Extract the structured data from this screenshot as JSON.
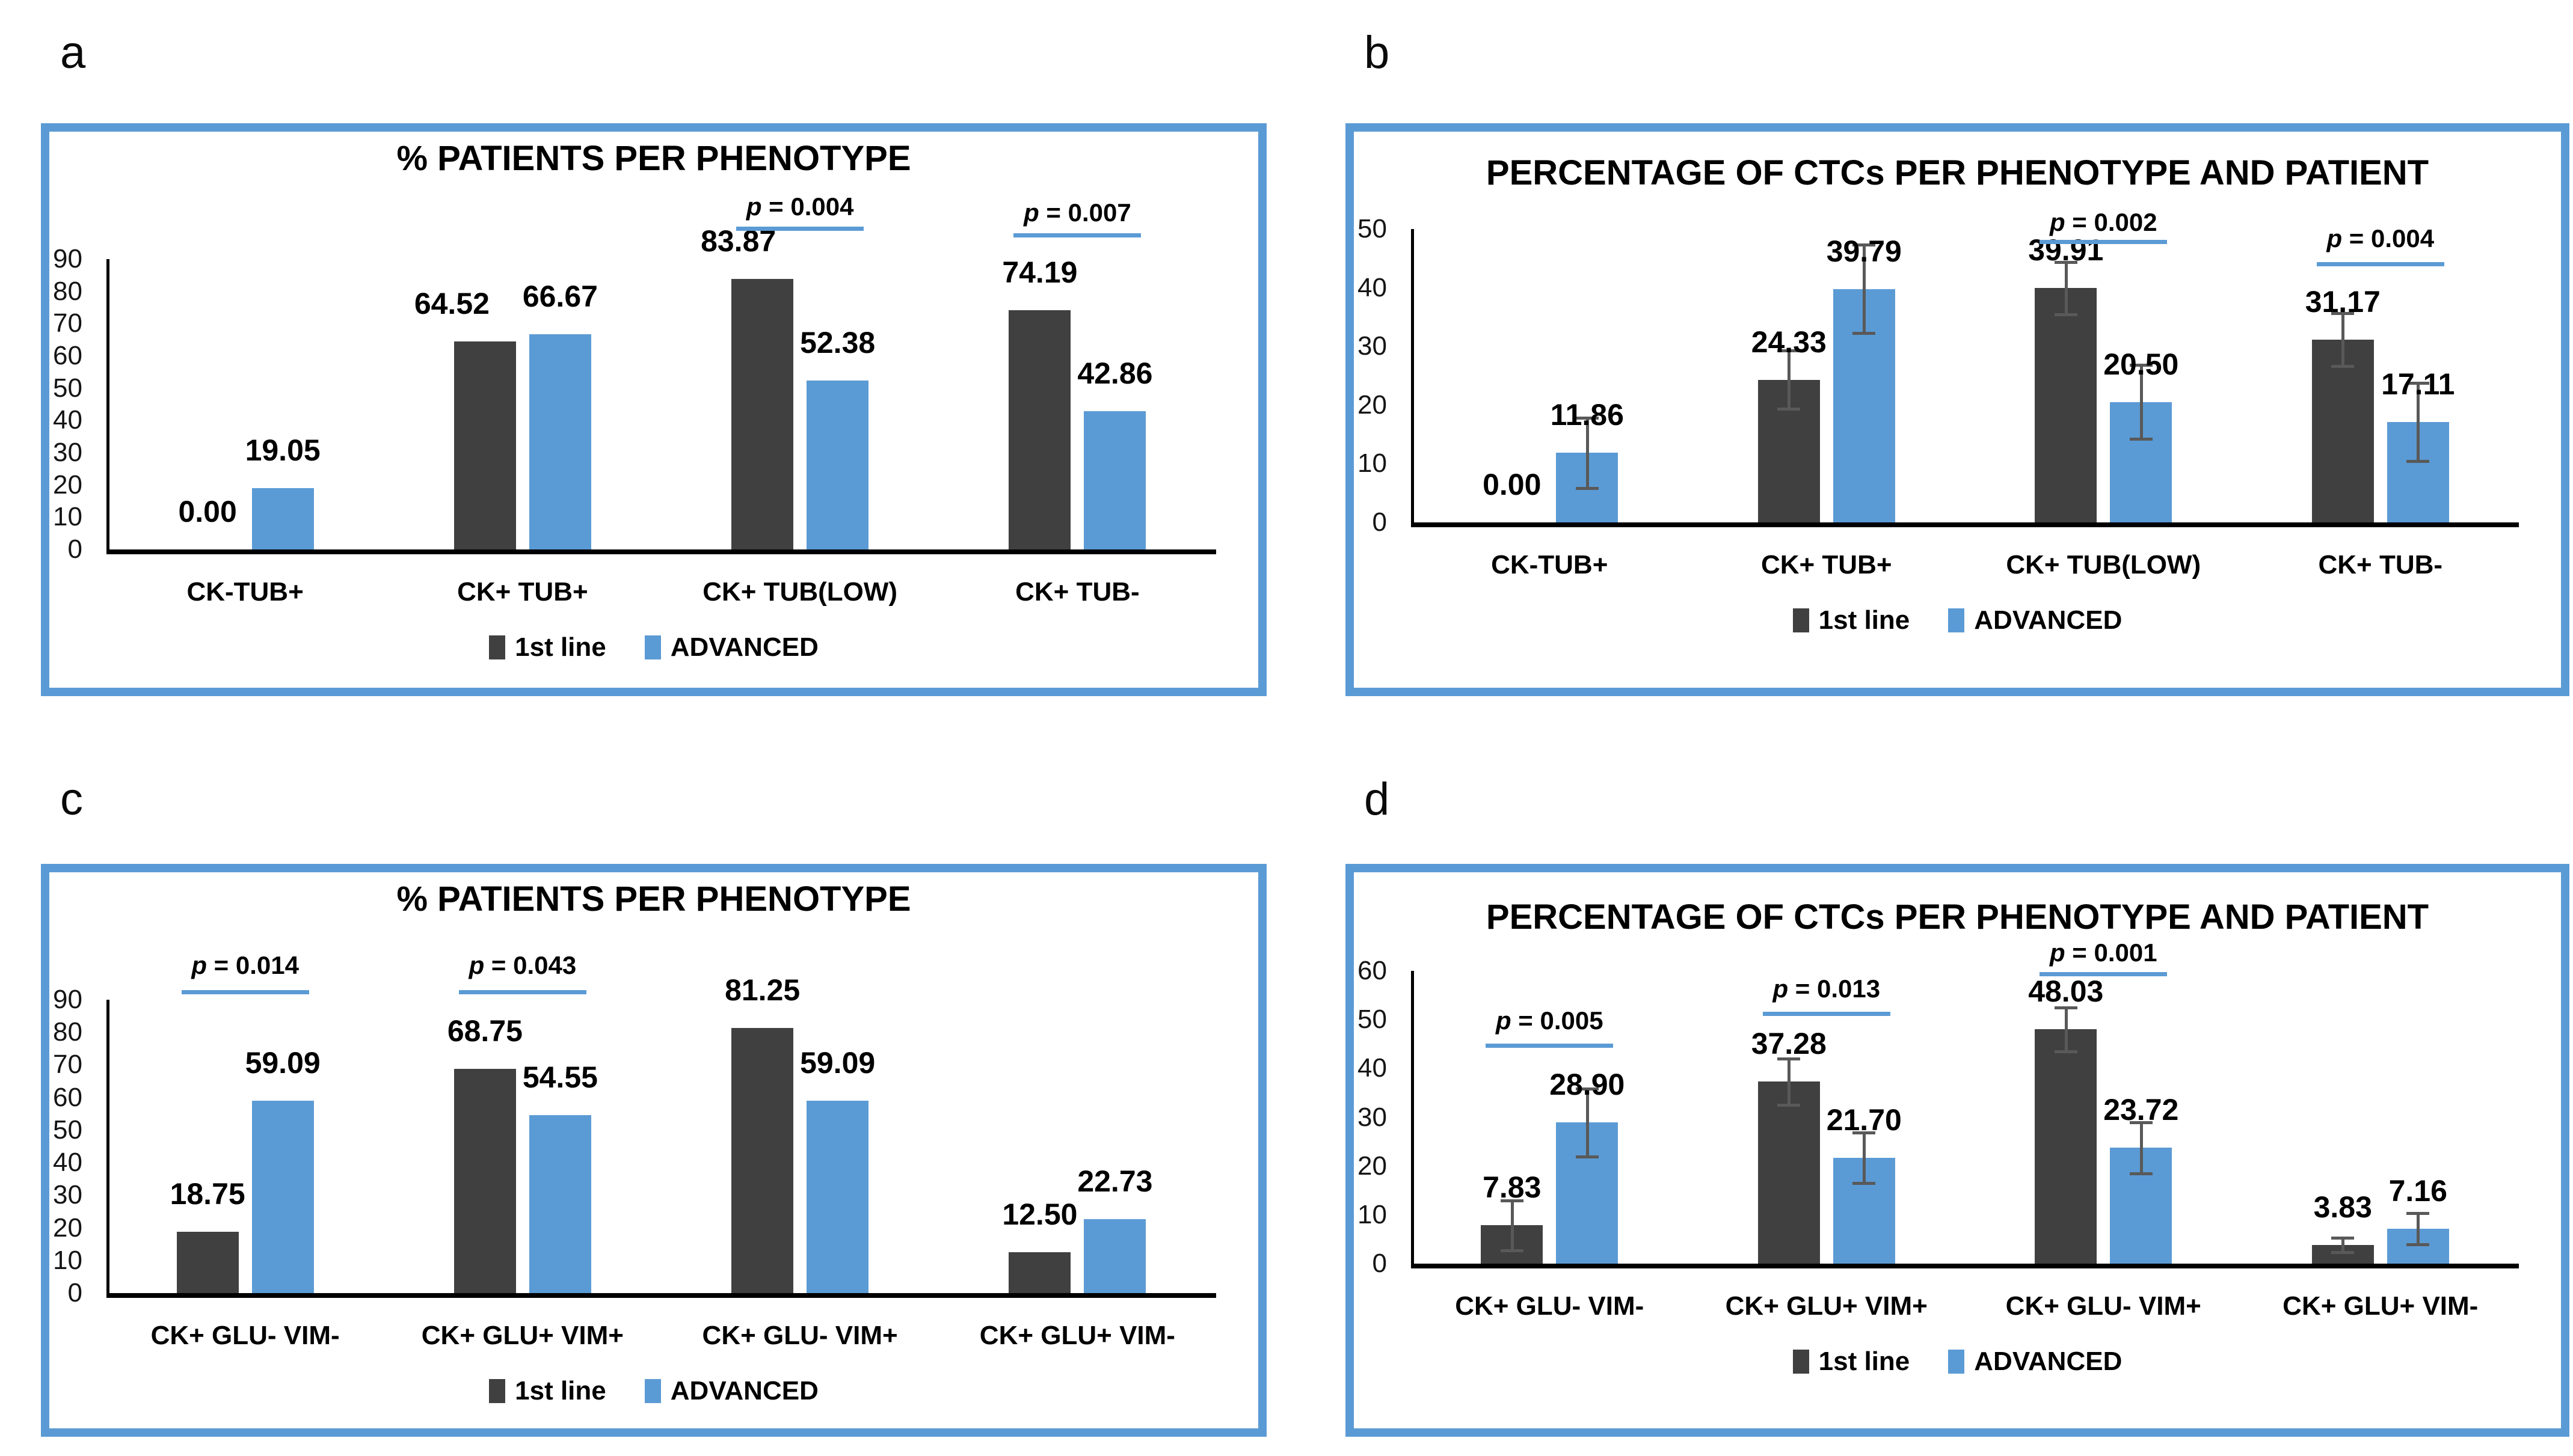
{
  "colors": {
    "series_dark": "#404040",
    "series_blue": "#5B9BD5",
    "panel_border": "#5B9BD5",
    "p_underline": "#5B9BD5",
    "axis": "#000000",
    "error_bar": "#595959",
    "text": "#000000",
    "background": "#FFFFFF"
  },
  "chart_data": [
    {
      "panel": "a",
      "type": "bar",
      "title": "% PATIENTS PER PHENOTYPE",
      "categories": [
        "CK-TUB+",
        "CK+ TUB+",
        "CK+ TUB(LOW)",
        "CK+ TUB-"
      ],
      "series": [
        {
          "name": "1st line",
          "color_key": "series_dark",
          "values": [
            0.0,
            64.52,
            83.87,
            74.19
          ],
          "label_dx": [
            0,
            -55,
            -40,
            0
          ]
        },
        {
          "name": "ADVANCED",
          "color_key": "series_blue",
          "values": [
            19.05,
            66.67,
            52.38,
            42.86
          ],
          "label_dx": [
            0,
            0,
            0,
            0
          ]
        }
      ],
      "ylim": [
        0,
        90
      ],
      "ystep": 10,
      "grid": false,
      "legend_position": "bottom",
      "value_label_decimals": 2,
      "annotations": [
        {
          "text": "p = 0.004",
          "group": 2,
          "text_top": 103,
          "line_top": 158
        },
        {
          "text": "p = 0.007",
          "group": 3,
          "text_top": 113,
          "line_top": 169
        }
      ]
    },
    {
      "panel": "b",
      "type": "bar",
      "title": "PERCENTAGE OF CTCs PER PHENOTYPE AND PATIENT",
      "categories": [
        "CK-TUB+",
        "CK+ TUB+",
        "CK+ TUB(LOW)",
        "CK+ TUB-"
      ],
      "series": [
        {
          "name": "1st line",
          "color_key": "series_dark",
          "values": [
            0.0,
            24.33,
            39.91,
            31.17
          ],
          "errors": [
            0,
            5.0,
            4.5,
            4.5
          ]
        },
        {
          "name": "ADVANCED",
          "color_key": "series_blue",
          "values": [
            11.86,
            39.79,
            20.5,
            17.11
          ],
          "errors": [
            6.0,
            7.5,
            6.3,
            6.7
          ]
        }
      ],
      "ylim": [
        0,
        50
      ],
      "ystep": 10,
      "grid": false,
      "legend_position": "bottom",
      "value_label_decimals": 2,
      "annotations": [
        {
          "text": "p = 0.002",
          "group": 2,
          "text_top": 129,
          "line_top": 180
        },
        {
          "text": "p = 0.004",
          "group": 3,
          "text_top": 156,
          "line_top": 217
        }
      ]
    },
    {
      "panel": "c",
      "type": "bar",
      "title": "% PATIENTS PER PHENOTYPE",
      "categories": [
        "CK+ GLU- VIM-",
        "CK+ GLU+ VIM+",
        "CK+ GLU- VIM+",
        "CK+ GLU+ VIM-"
      ],
      "series": [
        {
          "name": "1st line",
          "color_key": "series_dark",
          "values": [
            18.75,
            68.75,
            81.25,
            12.5
          ]
        },
        {
          "name": "ADVANCED",
          "color_key": "series_blue",
          "values": [
            59.09,
            54.55,
            59.09,
            22.73
          ]
        }
      ],
      "ylim": [
        0,
        90
      ],
      "ystep": 10,
      "grid": false,
      "legend_position": "bottom",
      "value_label_decimals": 2,
      "annotations": [
        {
          "text": "p = 0.014",
          "group": 0,
          "text_top": 133,
          "line_top": 196
        },
        {
          "text": "p = 0.043",
          "group": 1,
          "text_top": 133,
          "line_top": 196
        }
      ]
    },
    {
      "panel": "d",
      "type": "bar",
      "title": "PERCENTAGE OF CTCs PER PHENOTYPE AND PATIENT",
      "categories": [
        "CK+ GLU- VIM-",
        "CK+ GLU+ VIM+",
        "CK+ GLU- VIM+",
        "CK+ GLU+ VIM-"
      ],
      "series": [
        {
          "name": "1st line",
          "color_key": "series_dark",
          "values": [
            7.83,
            37.28,
            48.03,
            3.83
          ],
          "errors": [
            5.1,
            4.7,
            4.5,
            1.5
          ]
        },
        {
          "name": "ADVANCED",
          "color_key": "series_blue",
          "values": [
            28.9,
            21.7,
            23.72,
            7.16
          ],
          "errors": [
            7.0,
            5.2,
            5.2,
            3.2
          ]
        }
      ],
      "ylim": [
        0,
        60
      ],
      "ystep": 10,
      "grid": false,
      "legend_position": "bottom",
      "value_label_decimals": 2,
      "annotations": [
        {
          "text": "p = 0.005",
          "group": 0,
          "text_top": 225,
          "line_top": 285
        },
        {
          "text": "p = 0.013",
          "group": 1,
          "text_top": 172,
          "line_top": 232
        },
        {
          "text": "p = 0.001",
          "group": 2,
          "text_top": 112,
          "line_top": 166
        }
      ]
    }
  ]
}
